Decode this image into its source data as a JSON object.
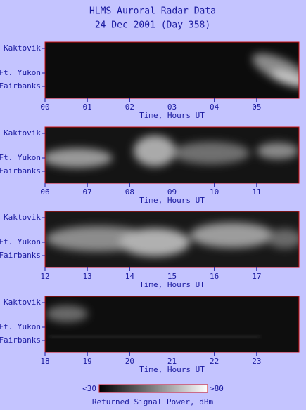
{
  "title": [
    "HLMS Auroral Radar Data",
    "24 Dec 2001 (Day 358)"
  ],
  "chart_data": [
    {
      "type": "heatmap",
      "y_labels": [
        "Kaktovik",
        "Ft. Yukon",
        "Fairbanks"
      ],
      "xlim": [
        0,
        6
      ],
      "xticks": [
        {
          "value": 0,
          "label": "00"
        },
        {
          "value": 1,
          "label": "01"
        },
        {
          "value": 2,
          "label": "02"
        },
        {
          "value": 3,
          "label": "03"
        },
        {
          "value": 4,
          "label": "04"
        },
        {
          "value": 5,
          "label": "05"
        }
      ],
      "xlabel": "Time, Hours UT"
    },
    {
      "type": "heatmap",
      "y_labels": [
        "Kaktovik",
        "Ft. Yukon",
        "Fairbanks"
      ],
      "xlim": [
        6,
        12
      ],
      "xticks": [
        {
          "value": 6,
          "label": "06"
        },
        {
          "value": 7,
          "label": "07"
        },
        {
          "value": 8,
          "label": "08"
        },
        {
          "value": 9,
          "label": "09"
        },
        10,
        11
      ],
      "xlabel": "Time, Hours UT"
    },
    {
      "type": "heatmap",
      "y_labels": [
        "Kaktovik",
        "Ft. Yukon",
        "Fairbanks"
      ],
      "xlim": [
        12,
        18
      ],
      "xticks": [
        12,
        13,
        14,
        15,
        16,
        17
      ],
      "xlabel": "Time, Hours UT"
    },
    {
      "type": "heatmap",
      "y_labels": [
        "Kaktovik",
        "Ft. Yukon",
        "Fairbanks"
      ],
      "xlim": [
        18,
        24
      ],
      "xticks": [
        18,
        19,
        20,
        21,
        22,
        23
      ],
      "xlabel": "Time, Hours UT"
    }
  ],
  "colorbar": {
    "ticks": [
      {
        "value": 30,
        "label": "<30"
      },
      {
        "value": 80,
        "label": ">80"
      }
    ],
    "label": "Returned Signal Power, dBm"
  }
}
